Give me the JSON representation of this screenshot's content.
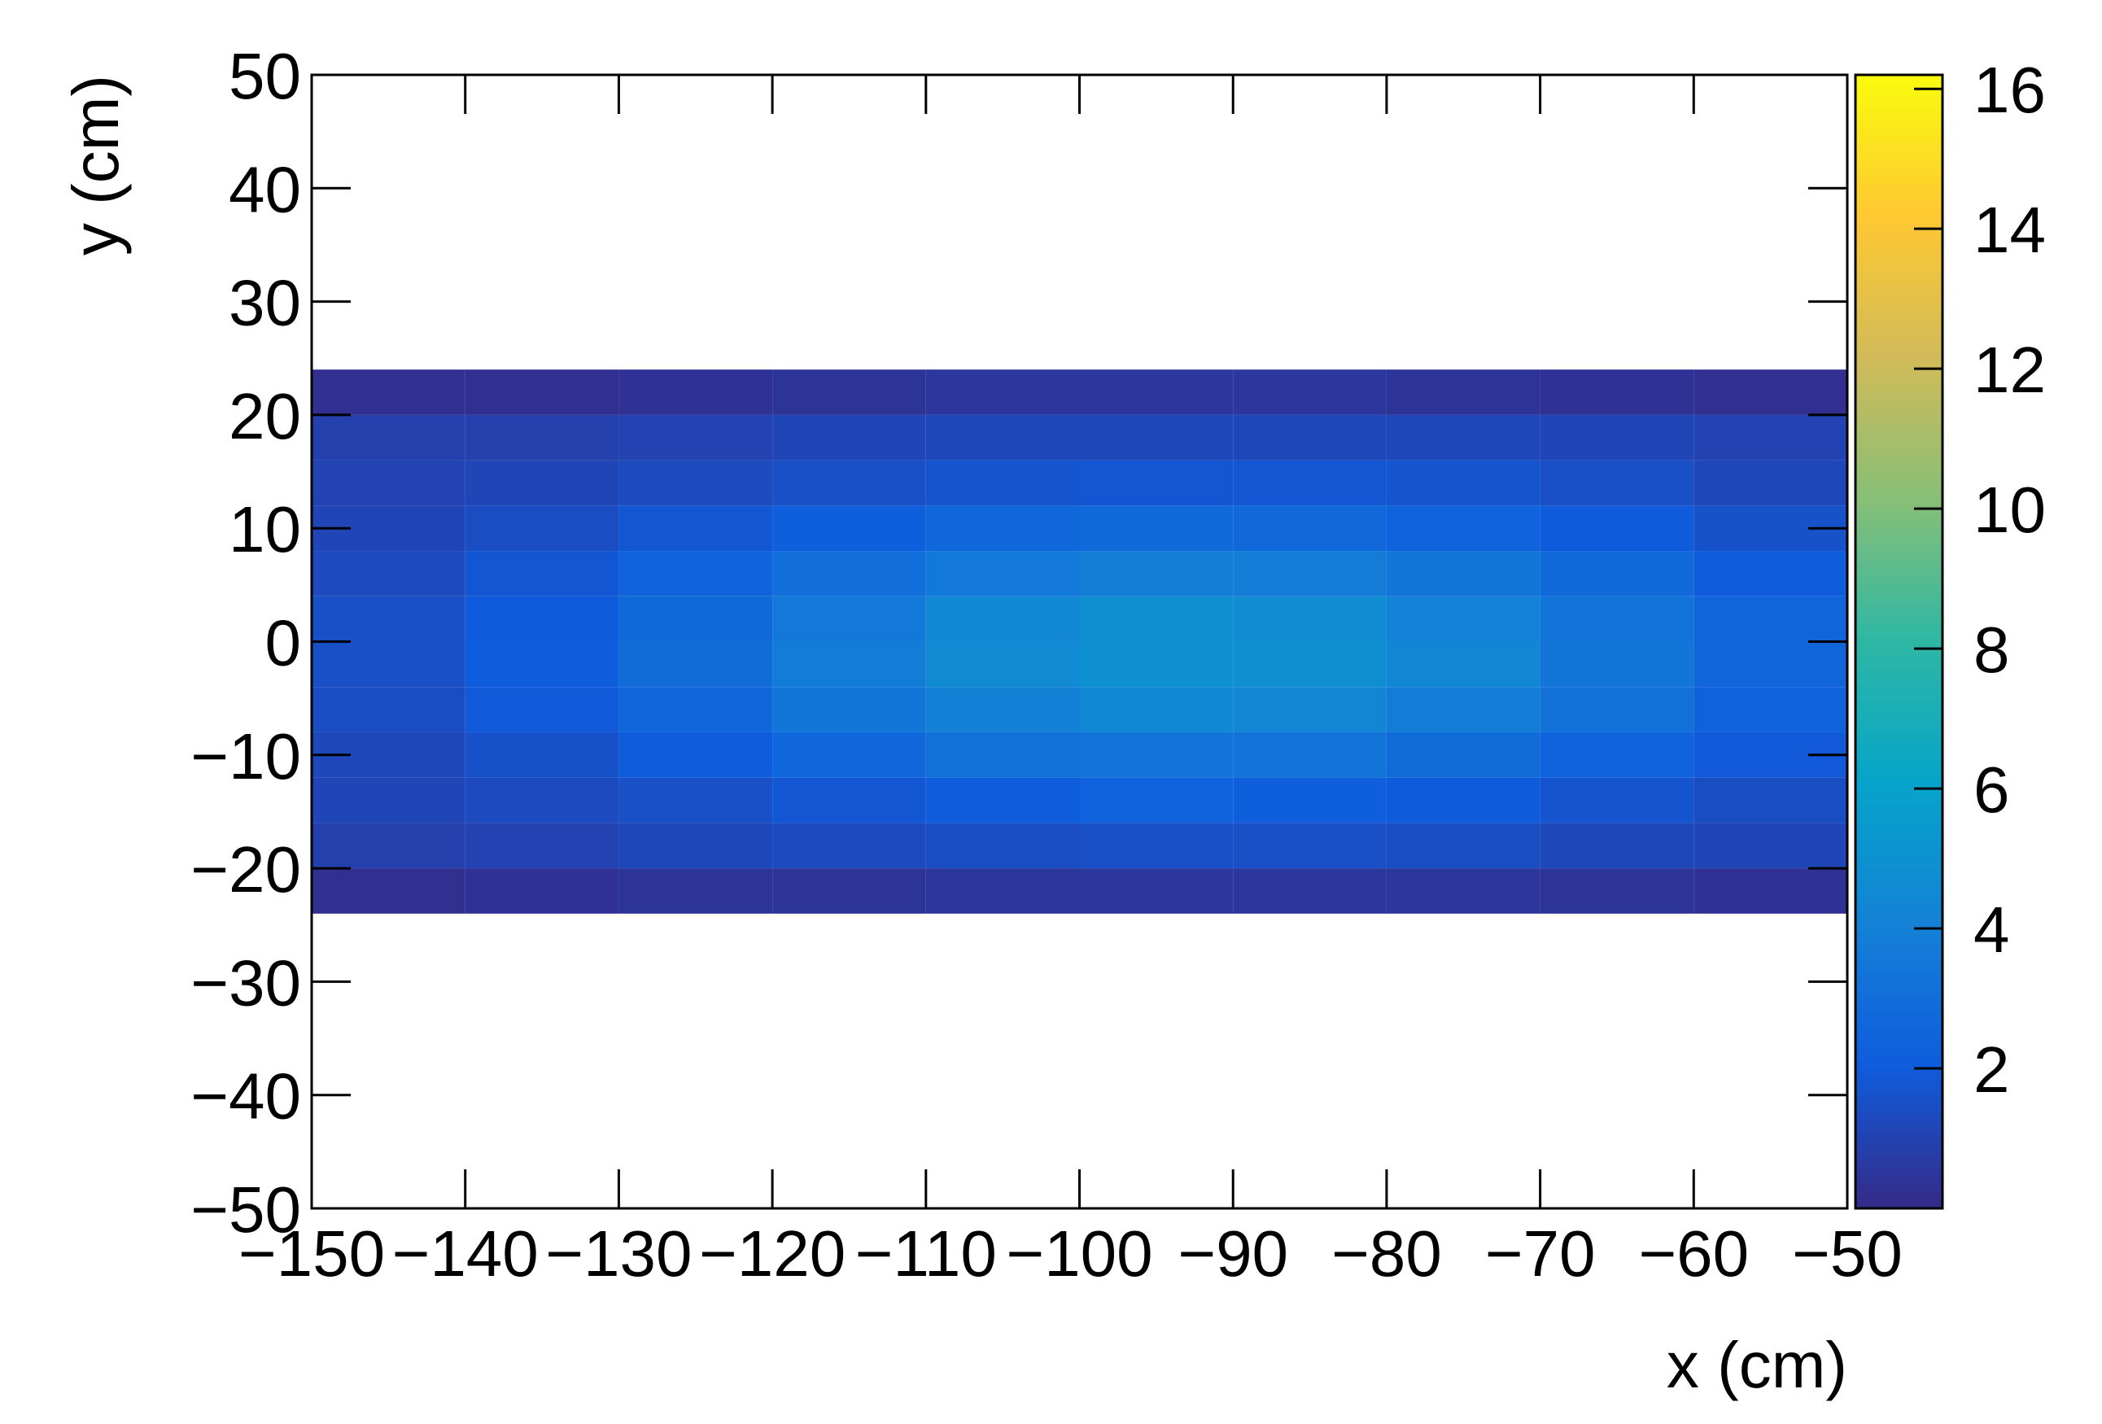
{
  "chart_data": {
    "type": "heatmap",
    "xlabel": "x (cm)",
    "ylabel": "y (cm)",
    "xlim": [
      -150,
      -50
    ],
    "ylim": [
      -50,
      50
    ],
    "xticks": [
      {
        "value": -150,
        "label": "−150"
      },
      {
        "value": -140,
        "label": "−140"
      },
      {
        "value": -130,
        "label": "−130"
      },
      {
        "value": -120,
        "label": "−120"
      },
      {
        "value": -110,
        "label": "−110"
      },
      {
        "value": -100,
        "label": "−100"
      },
      {
        "value": -90,
        "label": "−90"
      },
      {
        "value": -80,
        "label": "−80"
      },
      {
        "value": -70,
        "label": "−70"
      },
      {
        "value": -60,
        "label": "−60"
      },
      {
        "value": -50,
        "label": "−50"
      }
    ],
    "yticks": [
      {
        "value": -50,
        "label": "−50"
      },
      {
        "value": -40,
        "label": "−40"
      },
      {
        "value": -30,
        "label": "−30"
      },
      {
        "value": -20,
        "label": "−20"
      },
      {
        "value": -10,
        "label": "−10"
      },
      0,
      10,
      20,
      30,
      40,
      50
    ],
    "zlim": [
      0,
      16.2
    ],
    "zticks": [
      2,
      4,
      6,
      8,
      10,
      12,
      14,
      16
    ],
    "colorscale": [
      "#352a87",
      "#0f5cdd",
      "#1481d6",
      "#06a4ca",
      "#2eb7a4",
      "#87bf77",
      "#d1bb59",
      "#fec832",
      "#f9fb0e"
    ],
    "xbins": [
      -150,
      -140,
      -130,
      -120,
      -110,
      -100,
      -90,
      -80,
      -70,
      -60,
      -50
    ],
    "ybins": [
      -24,
      -20,
      -16,
      -12,
      -8,
      -4,
      0,
      4,
      8,
      12,
      16,
      20,
      24
    ],
    "z": [
      [
        0.2,
        0.3,
        0.4,
        0.4,
        0.5,
        0.5,
        0.5,
        0.5,
        0.4,
        0.3
      ],
      [
        0.9,
        1.0,
        1.2,
        1.3,
        1.4,
        1.5,
        1.5,
        1.4,
        1.2,
        1.1
      ],
      [
        1.1,
        1.3,
        1.5,
        1.8,
        2.1,
        2.3,
        2.2,
        2.0,
        1.7,
        1.4
      ],
      [
        1.2,
        1.6,
        2.1,
        2.6,
        3.1,
        3.3,
        3.3,
        2.9,
        2.4,
        1.9
      ],
      [
        1.4,
        1.9,
        2.6,
        3.4,
        4.0,
        4.4,
        4.3,
        3.8,
        3.1,
        2.3
      ],
      [
        1.5,
        2.1,
        2.9,
        3.8,
        4.5,
        4.9,
        4.8,
        4.3,
        3.4,
        2.5
      ],
      [
        1.5,
        2.0,
        2.8,
        3.6,
        4.4,
        4.8,
        4.7,
        4.1,
        3.3,
        2.5
      ],
      [
        1.3,
        1.8,
        2.4,
        3.0,
        3.6,
        3.9,
        3.8,
        3.4,
        2.8,
        2.1
      ],
      [
        1.1,
        1.4,
        1.8,
        2.2,
        2.6,
        2.8,
        2.7,
        2.4,
        2.0,
        1.6
      ],
      [
        1.0,
        1.1,
        1.3,
        1.5,
        1.7,
        1.8,
        1.8,
        1.7,
        1.5,
        1.2
      ],
      [
        0.9,
        0.9,
        1.0,
        1.1,
        1.2,
        1.2,
        1.2,
        1.2,
        1.1,
        1.0
      ],
      [
        0.2,
        0.2,
        0.3,
        0.4,
        0.5,
        0.5,
        0.5,
        0.4,
        0.3,
        0.2
      ]
    ]
  }
}
